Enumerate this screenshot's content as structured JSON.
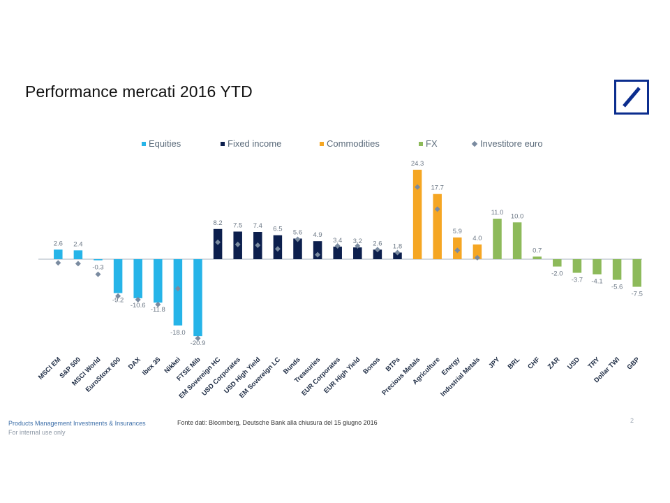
{
  "title": "Performance mercati 2016 YTD",
  "logo_name": "deutsche-bank-logo",
  "footer": {
    "department": "Products Management Investments & Insurances",
    "internal": "For internal use only",
    "source": "Fonte dati: Bloomberg, Deutsche Bank alla chiusura del 15 giugno 2016",
    "page": "2"
  },
  "colors": {
    "equities": "#26b4e8",
    "fixed_income": "#0c1f4d",
    "commodities": "#f5a623",
    "fx": "#8dba5a",
    "investor": "#7a8ba0",
    "logo": "#0b2d8e"
  },
  "chart_data": {
    "type": "bar",
    "title": "Performance mercati 2016 YTD",
    "xlabel": "",
    "ylabel": "",
    "ylim": [
      -25,
      27
    ],
    "legend": [
      {
        "name": "Equities",
        "key": "equities",
        "kind": "bar"
      },
      {
        "name": "Fixed income",
        "key": "fixed_income",
        "kind": "bar"
      },
      {
        "name": "Commodities",
        "key": "commodities",
        "kind": "bar"
      },
      {
        "name": "FX",
        "key": "fx",
        "kind": "bar"
      },
      {
        "name": "Investitore euro",
        "key": "investor",
        "kind": "marker"
      }
    ],
    "categories": [
      "MSCI EM",
      "S&P 500",
      "MSCI World",
      "EuroStoxx 600",
      "DAX",
      "Ibex 35",
      "Nikkei",
      "FTSE Mib",
      "EM Sovereign HC",
      "USD Corporates",
      "USD High Yield",
      "EM Sovereign LC",
      "Bunds",
      "Treasuries",
      "EUR Corporates",
      "EUR High Yield",
      "Bonos",
      "BTPs",
      "Precious Metals",
      "Agriculture",
      "Energy",
      "Industrial Metals",
      "JPY",
      "BRL",
      "CHF",
      "ZAR",
      "USD",
      "TRY",
      "Dollar TWI",
      "GBP"
    ],
    "groups": [
      "equities",
      "equities",
      "equities",
      "equities",
      "equities",
      "equities",
      "equities",
      "equities",
      "fixed_income",
      "fixed_income",
      "fixed_income",
      "fixed_income",
      "fixed_income",
      "fixed_income",
      "fixed_income",
      "fixed_income",
      "fixed_income",
      "fixed_income",
      "commodities",
      "commodities",
      "commodities",
      "commodities",
      "fx",
      "fx",
      "fx",
      "fx",
      "fx",
      "fx",
      "fx",
      "fx"
    ],
    "values": [
      2.6,
      2.4,
      -0.3,
      -9.2,
      -10.6,
      -11.8,
      -18.0,
      -20.9,
      8.2,
      7.5,
      7.4,
      6.5,
      5.6,
      4.9,
      3.4,
      3.2,
      2.6,
      1.8,
      24.3,
      17.7,
      5.9,
      4.0,
      11.0,
      10.0,
      0.7,
      -2.0,
      -3.7,
      -4.1,
      -5.6,
      -7.5
    ],
    "labels": [
      "2.6",
      "2.4",
      "-0.3",
      "-9.2",
      "-10.6",
      "-11.8",
      "-18.0",
      "-20.9",
      "8.2",
      "7.5",
      "7.4",
      "6.5",
      "5.6",
      "4.9",
      "3.4",
      "3.2",
      "2.6",
      "1.8",
      "24.3",
      "17.7",
      "5.9",
      "4.0",
      "11.0",
      "10.0",
      "0.7",
      "-2.0",
      "-3.7",
      "-4.1",
      "-5.6",
      "-7.5"
    ],
    "investitore_euro": [
      -1.0,
      -1.2,
      -4.1,
      -10.0,
      -11.0,
      -12.3,
      -8.0,
      -21.5,
      4.6,
      4.0,
      3.8,
      2.8,
      5.4,
      1.2,
      3.6,
      3.6,
      2.6,
      1.8,
      19.6,
      13.6,
      2.4,
      0.4,
      null,
      null,
      null,
      null,
      null,
      null,
      null,
      null
    ]
  }
}
